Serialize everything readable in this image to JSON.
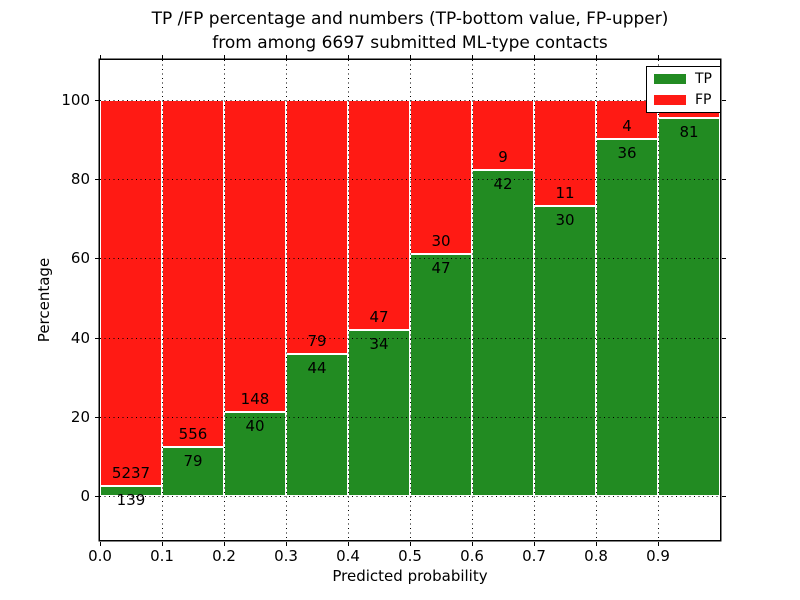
{
  "figure": {
    "title_line1": "TP /FP percentage and numbers (TP-bottom value, FP-upper)",
    "title_line2": "from among 6697 submitted ML-type contacts",
    "background": "#ffffff"
  },
  "chart_data": {
    "type": "bar",
    "stacked": true,
    "title": "TP /FP percentage and numbers (TP-bottom value, FP-upper) from among 6697 submitted ML-type contacts",
    "total_submitted_contacts": 6697,
    "xlabel": "Predicted probability",
    "ylabel": "Percentage",
    "x_ticks": [
      "0.0",
      "0.1",
      "0.2",
      "0.3",
      "0.4",
      "0.5",
      "0.6",
      "0.7",
      "0.8",
      "0.9"
    ],
    "y_ticks": [
      0,
      20,
      40,
      60,
      80,
      100
    ],
    "ylim": [
      -11,
      110
    ],
    "xlim": [
      0.0,
      1.0
    ],
    "bin_width": 0.1,
    "grid": "dotted black, drawn over bars",
    "bar_edge_color": "#ffffff",
    "colors": {
      "tp": "#228b22",
      "fp": "#ff1a14"
    },
    "legend": {
      "position": "upper right",
      "entries": [
        {
          "label": "TP",
          "color": "#228b22"
        },
        {
          "label": "FP",
          "color": "#ff1a14"
        }
      ]
    },
    "bars": [
      {
        "bin_start": 0.0,
        "tp": 139,
        "fp": 5237,
        "tp_pct": 2.59,
        "fp_label_visible": true
      },
      {
        "bin_start": 0.1,
        "tp": 79,
        "fp": 556,
        "tp_pct": 12.44,
        "fp_label_visible": true
      },
      {
        "bin_start": 0.2,
        "tp": 40,
        "fp": 148,
        "tp_pct": 21.28,
        "fp_label_visible": true
      },
      {
        "bin_start": 0.3,
        "tp": 44,
        "fp": 79,
        "tp_pct": 35.77,
        "fp_label_visible": true
      },
      {
        "bin_start": 0.4,
        "tp": 34,
        "fp": 47,
        "tp_pct": 41.98,
        "fp_label_visible": true
      },
      {
        "bin_start": 0.5,
        "tp": 47,
        "fp": 30,
        "tp_pct": 61.04,
        "fp_label_visible": true
      },
      {
        "bin_start": 0.6,
        "tp": 42,
        "fp": 9,
        "tp_pct": 82.35,
        "fp_label_visible": true
      },
      {
        "bin_start": 0.7,
        "tp": 30,
        "fp": 11,
        "tp_pct": 73.17,
        "fp_label_visible": true
      },
      {
        "bin_start": 0.8,
        "tp": 36,
        "fp": 4,
        "tp_pct": 90.0,
        "fp_label_visible": true
      },
      {
        "bin_start": 0.9,
        "tp": 81,
        "fp": null,
        "tp_pct": 95.3,
        "fp_label_visible": false
      }
    ]
  }
}
